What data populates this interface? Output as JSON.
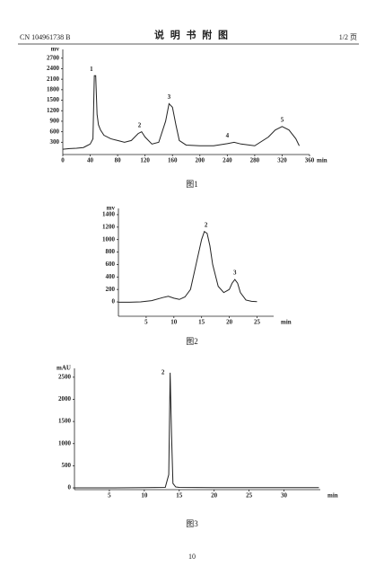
{
  "header": {
    "number": "CN 104961738 B",
    "title": "说 明 书 附 图",
    "page": "1/2 页"
  },
  "footer": "10",
  "chart_data": [
    {
      "type": "line",
      "y_label": "mv",
      "x_label": "min",
      "caption": "图1",
      "x": [
        0,
        10,
        20,
        30,
        35,
        40,
        44,
        46,
        48,
        50,
        52,
        55,
        60,
        70,
        80,
        90,
        100,
        110,
        115,
        120,
        130,
        140,
        150,
        155,
        160,
        165,
        170,
        180,
        200,
        220,
        240,
        250,
        260,
        280,
        300,
        310,
        320,
        330,
        340,
        345
      ],
      "series": [
        {
          "color": "#222222",
          "values": [
            100,
            120,
            130,
            150,
            200,
            250,
            400,
            2200,
            2200,
            1100,
            800,
            650,
            500,
            400,
            350,
            300,
            350,
            550,
            600,
            450,
            250,
            300,
            900,
            1400,
            1300,
            800,
            350,
            220,
            200,
            200,
            260,
            300,
            250,
            200,
            450,
            650,
            750,
            650,
            400,
            200
          ]
        }
      ],
      "peaks": [
        {
          "text": "1",
          "x": 47,
          "y": 2200
        },
        {
          "text": "2",
          "x": 112,
          "y": 600
        },
        {
          "text": "3",
          "x": 155,
          "y": 1400
        },
        {
          "text": "4",
          "x": 240,
          "y": 300
        },
        {
          "text": "5",
          "x": 320,
          "y": 750
        }
      ],
      "xlim": [
        0,
        360
      ],
      "xticks": [
        0,
        40,
        80,
        120,
        160,
        200,
        240,
        280,
        320,
        360
      ],
      "ylim": [
        -50,
        2950
      ],
      "yticks": [
        300,
        600,
        900,
        1200,
        1500,
        1800,
        2100,
        2400,
        2700
      ]
    },
    {
      "type": "line",
      "y_label": "mv",
      "x_label": "min",
      "caption": "图2",
      "x": [
        0,
        2,
        4,
        6,
        8,
        9,
        10,
        11,
        12,
        13,
        14,
        15,
        15.5,
        16,
        16.5,
        17,
        18,
        19,
        20,
        20.5,
        21,
        21.5,
        22,
        23,
        24,
        25
      ],
      "series": [
        {
          "color": "#222222",
          "values": [
            -5,
            -5,
            0,
            20,
            70,
            90,
            60,
            40,
            80,
            200,
            600,
            1000,
            1130,
            1100,
            900,
            600,
            250,
            150,
            200,
            300,
            360,
            300,
            150,
            30,
            10,
            5
          ]
        }
      ],
      "peaks": [
        {
          "text": "2",
          "x": 15.8,
          "y": 1130
        },
        {
          "text": "3",
          "x": 21,
          "y": 360
        }
      ],
      "xlim": [
        0,
        28
      ],
      "xticks": [
        5,
        10,
        15,
        20,
        25
      ],
      "ylim": [
        -230,
        1500
      ],
      "yticks": [
        0,
        200,
        400,
        600,
        800,
        1000,
        1200,
        1400
      ]
    },
    {
      "type": "line",
      "y_label": "mAU",
      "x_label": "min",
      "caption": "图3",
      "x": [
        0,
        5,
        10,
        13,
        13.5,
        13.7,
        13.9,
        14.1,
        14.5,
        15,
        20,
        25,
        30,
        35
      ],
      "series": [
        {
          "color": "#222222",
          "values": [
            0,
            0,
            5,
            10,
            300,
            2600,
            1200,
            100,
            20,
            10,
            5,
            5,
            5,
            5
          ]
        }
      ],
      "peaks": [
        {
          "text": "2",
          "x": 13.7,
          "y": 2600
        }
      ],
      "xlim": [
        0,
        35.2
      ],
      "xticks": [
        5,
        10,
        15,
        20,
        25,
        30
      ],
      "ylim": [
        -40,
        2700
      ],
      "yticks": [
        0,
        500,
        1000,
        1500,
        2000,
        2500
      ]
    }
  ]
}
